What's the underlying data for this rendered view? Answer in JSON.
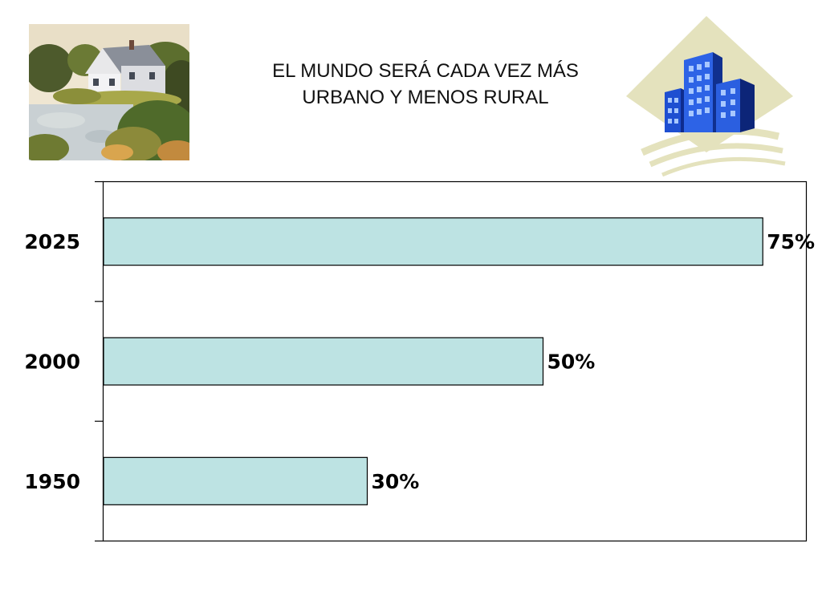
{
  "slide": {
    "title_lines": [
      "EL MUNDO SERÁ CADA VEZ MÁS",
      "URBANO Y MENOS RURAL"
    ]
  },
  "chart_data": {
    "type": "bar",
    "orientation": "horizontal",
    "categories": [
      "2025",
      "2000",
      "1950"
    ],
    "values": [
      75,
      50,
      30
    ],
    "value_labels": [
      "75%",
      "50%",
      "30%"
    ],
    "xlim": [
      0,
      80
    ],
    "grid": false,
    "legend": "none",
    "bar_color": "#bde3e3"
  },
  "icons": {
    "left": "rural-house-lake-picture",
    "right": "city-buildings-picture"
  }
}
